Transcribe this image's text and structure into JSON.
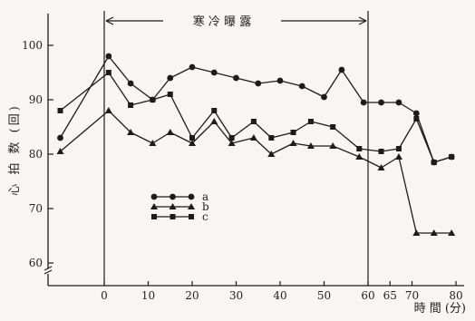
{
  "chart_data": {
    "type": "line",
    "annotation": "寒 冷 曝 露",
    "xlabel": "時 間 (分)",
    "ylabel": "心 拍 数 (回)",
    "x_ticks": [
      0,
      10,
      20,
      30,
      40,
      50,
      60,
      65,
      70,
      80
    ],
    "y_ticks": [
      60,
      70,
      80,
      90,
      100
    ],
    "ylim": [
      57,
      104
    ],
    "xlim": [
      -12,
      82
    ],
    "exposure_start": 0,
    "exposure_end": 60,
    "series": [
      {
        "name": "a",
        "marker": "circle",
        "x": [
          -10,
          1,
          6,
          11,
          15,
          20,
          25,
          30,
          35,
          40,
          45,
          50,
          54,
          59,
          63,
          67,
          71,
          75,
          79
        ],
        "y": [
          83,
          98,
          93,
          90,
          94,
          96,
          95,
          94,
          93,
          93.5,
          92.5,
          90.5,
          95.5,
          89.5,
          89.5,
          89.5,
          87.5,
          78.5,
          79.5
        ]
      },
      {
        "name": "b",
        "marker": "triangle",
        "x": [
          -10,
          1,
          6,
          11,
          15,
          20,
          25,
          29,
          34,
          38,
          43,
          47,
          52,
          58,
          63,
          67,
          71,
          75,
          79
        ],
        "y": [
          80.5,
          88,
          84,
          82,
          84,
          82,
          86,
          82,
          83,
          80,
          82,
          81.5,
          81.5,
          79.5,
          77.5,
          79.5,
          65.5,
          65.5,
          65.5
        ]
      },
      {
        "name": "c",
        "marker": "square",
        "x": [
          -10,
          1,
          6,
          11,
          15,
          20,
          25,
          29,
          34,
          38,
          43,
          47,
          52,
          58,
          63,
          67,
          71,
          75,
          79
        ],
        "y": [
          88,
          95,
          89,
          90,
          91,
          83,
          88,
          83,
          86,
          83,
          84,
          86,
          85,
          81,
          80.5,
          81,
          86.5,
          78.5,
          79.5
        ]
      }
    ]
  }
}
